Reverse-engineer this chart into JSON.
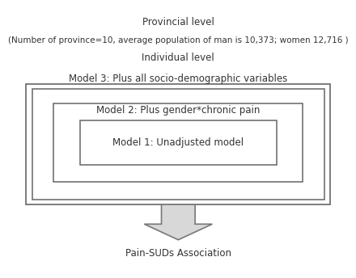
{
  "bg_color": "#ffffff",
  "box_color": "#ffffff",
  "border_color": "#666666",
  "text_color": "#333333",
  "line1": "Provincial level",
  "line2": "(Number of province=10, average population of man is 10,373; women 12,716 )",
  "line3": "Individual level",
  "model3_text": "Model 3: Plus all socio-demographic variables",
  "model2_text": "Model 2: Plus gender*chronic pain",
  "model1_text": "Model 1: Unadjusted model",
  "bottom_text": "Pain-SUDs Association",
  "fontsize_main": 8.5,
  "fontsize_sub": 7.8,
  "arrow_fill": "#d8d8d8",
  "arrow_edge": "#777777"
}
